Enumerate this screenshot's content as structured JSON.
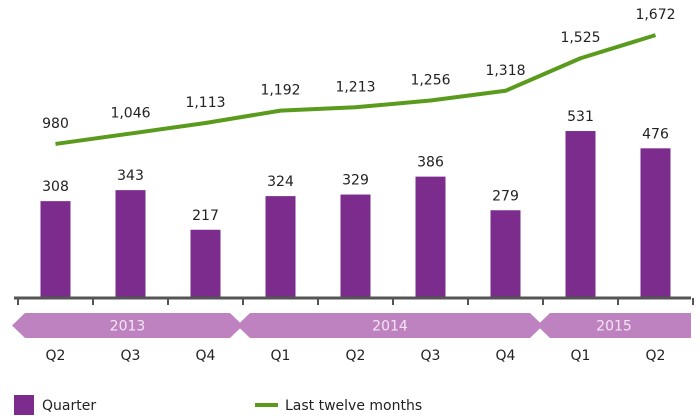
{
  "chart_data": {
    "type": "bar-line",
    "categories": [
      "Q2",
      "Q3",
      "Q4",
      "Q1",
      "Q2",
      "Q3",
      "Q4",
      "Q1",
      "Q2"
    ],
    "groups": [
      {
        "name": "2013",
        "count": 3
      },
      {
        "name": "2014",
        "count": 4
      },
      {
        "name": "2015",
        "count": 2
      }
    ],
    "series": [
      {
        "name": "Quarter",
        "type": "bar",
        "axis": "y",
        "color": "#7b2c8c",
        "values": [
          308,
          343,
          217,
          324,
          329,
          386,
          279,
          531,
          476
        ]
      },
      {
        "name": "Last twelve months",
        "type": "line",
        "axis": "y2",
        "color": "#5a9b1e",
        "values": [
          980,
          1046,
          1113,
          1192,
          1213,
          1256,
          1318,
          1525,
          1672
        ],
        "value_labels": [
          "980",
          "1,046",
          "1,113",
          "1,192",
          "1,213",
          "1,256",
          "1,318",
          "1,525",
          "1,672"
        ]
      }
    ],
    "ylim": [
      0,
      900
    ],
    "y2lim": [
      0,
      1800
    ],
    "legend": "bottom-left"
  }
}
